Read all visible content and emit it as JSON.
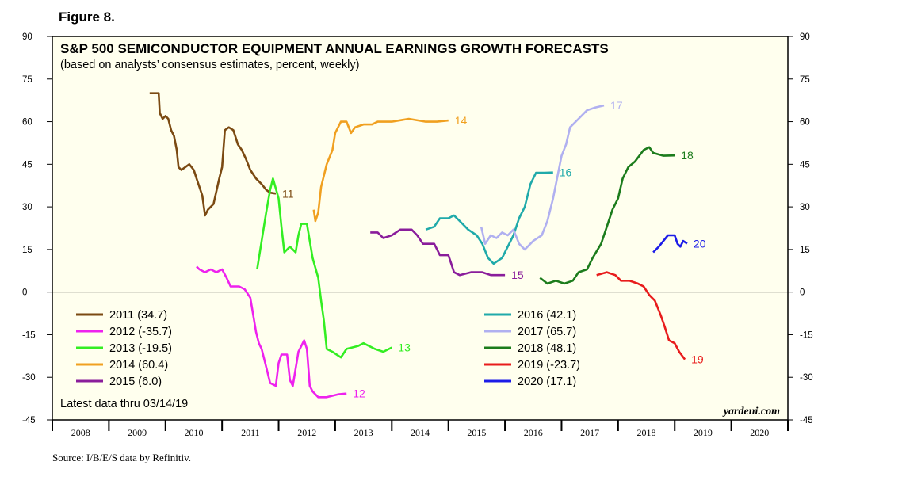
{
  "figure_label": "Figure 8.",
  "source": "Source: I/B/E/S data by Refinitiv.",
  "chart_data": {
    "type": "line",
    "title": "S&P 500 SEMICONDUCTOR EQUIPMENT ANNUAL EARNINGS GROWTH FORECASTS",
    "subtitle": "(based on analysts’ consensus estimates, percent, weekly)",
    "xlabel": "",
    "ylabel": "",
    "xlim": [
      2008,
      2021
    ],
    "ylim": [
      -45,
      90
    ],
    "yticks": [
      90,
      75,
      60,
      45,
      30,
      15,
      0,
      -15,
      -30,
      -45
    ],
    "ytick_labels": [
      "90",
      "75",
      "60",
      "45",
      "30",
      "15",
      "0",
      "-15",
      "-30",
      "-45"
    ],
    "x_categories": [
      "2008",
      "2009",
      "2010",
      "2011",
      "2012",
      "2013",
      "2014",
      "2015",
      "2016",
      "2017",
      "2018",
      "2019",
      "2020"
    ],
    "zero_line": true,
    "note": "Latest data thru 03/14/19",
    "brand": "yardeni.com",
    "legend_position": "lower-left and lower-center, two columns",
    "series": [
      {
        "name": "2011",
        "legend": "2011 (34.7)",
        "end_label": "11",
        "color": "#7b4a12",
        "points": [
          [
            2009.72,
            70
          ],
          [
            2009.88,
            70
          ],
          [
            2009.9,
            63
          ],
          [
            2009.95,
            61
          ],
          [
            2010.0,
            62
          ],
          [
            2010.05,
            61
          ],
          [
            2010.1,
            57
          ],
          [
            2010.15,
            55
          ],
          [
            2010.2,
            50
          ],
          [
            2010.23,
            44
          ],
          [
            2010.28,
            43
          ],
          [
            2010.35,
            44
          ],
          [
            2010.42,
            45
          ],
          [
            2010.5,
            43
          ],
          [
            2010.55,
            40
          ],
          [
            2010.6,
            37
          ],
          [
            2010.65,
            34
          ],
          [
            2010.7,
            27
          ],
          [
            2010.75,
            29
          ],
          [
            2010.85,
            31
          ],
          [
            2010.95,
            40
          ],
          [
            2011.0,
            44
          ],
          [
            2011.05,
            57
          ],
          [
            2011.12,
            58
          ],
          [
            2011.2,
            57
          ],
          [
            2011.28,
            52
          ],
          [
            2011.35,
            50
          ],
          [
            2011.42,
            47
          ],
          [
            2011.5,
            43
          ],
          [
            2011.6,
            40
          ],
          [
            2011.7,
            38
          ],
          [
            2011.78,
            36
          ],
          [
            2011.85,
            35
          ],
          [
            2011.95,
            34.7
          ]
        ]
      },
      {
        "name": "2012",
        "legend": "2012 (-35.7)",
        "end_label": "12",
        "color": "#ee22ee",
        "points": [
          [
            2010.55,
            9
          ],
          [
            2010.6,
            8
          ],
          [
            2010.7,
            7
          ],
          [
            2010.8,
            8
          ],
          [
            2010.9,
            7
          ],
          [
            2011.0,
            8
          ],
          [
            2011.08,
            5
          ],
          [
            2011.15,
            2
          ],
          [
            2011.3,
            2
          ],
          [
            2011.4,
            1
          ],
          [
            2011.5,
            -2
          ],
          [
            2011.55,
            -8
          ],
          [
            2011.6,
            -14
          ],
          [
            2011.65,
            -18
          ],
          [
            2011.7,
            -20
          ],
          [
            2011.75,
            -24
          ],
          [
            2011.8,
            -28
          ],
          [
            2011.85,
            -32
          ],
          [
            2011.95,
            -33
          ],
          [
            2012.0,
            -25
          ],
          [
            2012.05,
            -22
          ],
          [
            2012.15,
            -22
          ],
          [
            2012.2,
            -31
          ],
          [
            2012.25,
            -33
          ],
          [
            2012.35,
            -21
          ],
          [
            2012.45,
            -17
          ],
          [
            2012.5,
            -20
          ],
          [
            2012.55,
            -33
          ],
          [
            2012.6,
            -35
          ],
          [
            2012.7,
            -37
          ],
          [
            2012.85,
            -37
          ],
          [
            2013.05,
            -36
          ],
          [
            2013.2,
            -35.7
          ]
        ]
      },
      {
        "name": "2013",
        "legend": "2013 (-19.5)",
        "end_label": "13",
        "color": "#33ee22",
        "points": [
          [
            2011.62,
            8
          ],
          [
            2011.7,
            18
          ],
          [
            2011.78,
            28
          ],
          [
            2011.85,
            36
          ],
          [
            2011.9,
            40
          ],
          [
            2012.0,
            33
          ],
          [
            2012.05,
            23
          ],
          [
            2012.1,
            14
          ],
          [
            2012.2,
            16
          ],
          [
            2012.3,
            14
          ],
          [
            2012.35,
            20
          ],
          [
            2012.4,
            24
          ],
          [
            2012.5,
            24
          ],
          [
            2012.55,
            18
          ],
          [
            2012.6,
            12
          ],
          [
            2012.7,
            5
          ],
          [
            2012.75,
            -3
          ],
          [
            2012.8,
            -10
          ],
          [
            2012.85,
            -20
          ],
          [
            2012.95,
            -21
          ],
          [
            2013.1,
            -23
          ],
          [
            2013.2,
            -20
          ],
          [
            2013.4,
            -19
          ],
          [
            2013.5,
            -18
          ],
          [
            2013.7,
            -20
          ],
          [
            2013.85,
            -21
          ],
          [
            2014.0,
            -19.5
          ]
        ]
      },
      {
        "name": "2014",
        "legend": "2014 (60.4)",
        "end_label": "14",
        "color": "#f0a020",
        "points": [
          [
            2012.62,
            29
          ],
          [
            2012.65,
            25
          ],
          [
            2012.7,
            28
          ],
          [
            2012.75,
            37
          ],
          [
            2012.85,
            45
          ],
          [
            2012.95,
            50
          ],
          [
            2013.0,
            56
          ],
          [
            2013.1,
            60
          ],
          [
            2013.2,
            60
          ],
          [
            2013.28,
            56
          ],
          [
            2013.35,
            58
          ],
          [
            2013.5,
            59
          ],
          [
            2013.65,
            59
          ],
          [
            2013.75,
            60
          ],
          [
            2014.0,
            60
          ],
          [
            2014.3,
            61
          ],
          [
            2014.6,
            60
          ],
          [
            2014.8,
            60
          ],
          [
            2015.0,
            60.4
          ]
        ]
      },
      {
        "name": "2015",
        "legend": "2015 (6.0)",
        "end_label": "15",
        "color": "#8a1d9b",
        "points": [
          [
            2013.62,
            21
          ],
          [
            2013.75,
            21
          ],
          [
            2013.85,
            19
          ],
          [
            2014.0,
            20
          ],
          [
            2014.15,
            22
          ],
          [
            2014.35,
            22
          ],
          [
            2014.45,
            20
          ],
          [
            2014.55,
            17
          ],
          [
            2014.75,
            17
          ],
          [
            2014.85,
            13
          ],
          [
            2015.0,
            13
          ],
          [
            2015.05,
            10
          ],
          [
            2015.1,
            7
          ],
          [
            2015.2,
            6
          ],
          [
            2015.4,
            7
          ],
          [
            2015.6,
            7
          ],
          [
            2015.75,
            6
          ],
          [
            2015.9,
            6
          ],
          [
            2016.0,
            6.0
          ]
        ]
      },
      {
        "name": "2016",
        "legend": "2016 (42.1)",
        "end_label": "16",
        "color": "#20aaaa",
        "points": [
          [
            2014.6,
            22
          ],
          [
            2014.75,
            23
          ],
          [
            2014.85,
            26
          ],
          [
            2015.0,
            26
          ],
          [
            2015.1,
            27
          ],
          [
            2015.2,
            25
          ],
          [
            2015.35,
            22
          ],
          [
            2015.5,
            20
          ],
          [
            2015.6,
            17
          ],
          [
            2015.7,
            12
          ],
          [
            2015.8,
            10
          ],
          [
            2015.95,
            12
          ],
          [
            2016.05,
            16
          ],
          [
            2016.15,
            20
          ],
          [
            2016.25,
            26
          ],
          [
            2016.35,
            30
          ],
          [
            2016.45,
            38
          ],
          [
            2016.55,
            42
          ],
          [
            2016.7,
            42
          ],
          [
            2016.85,
            42.1
          ]
        ]
      },
      {
        "name": "2017",
        "legend": "2017 (65.7)",
        "end_label": "17",
        "color": "#b0b0f0",
        "points": [
          [
            2015.58,
            23
          ],
          [
            2015.65,
            17
          ],
          [
            2015.75,
            20
          ],
          [
            2015.85,
            19
          ],
          [
            2015.95,
            21
          ],
          [
            2016.05,
            20
          ],
          [
            2016.15,
            22
          ],
          [
            2016.25,
            17
          ],
          [
            2016.35,
            15
          ],
          [
            2016.5,
            18
          ],
          [
            2016.65,
            20
          ],
          [
            2016.75,
            25
          ],
          [
            2016.85,
            33
          ],
          [
            2016.92,
            40
          ],
          [
            2017.0,
            48
          ],
          [
            2017.08,
            52
          ],
          [
            2017.15,
            58
          ],
          [
            2017.3,
            61
          ],
          [
            2017.45,
            64
          ],
          [
            2017.6,
            65
          ],
          [
            2017.75,
            65.7
          ]
        ]
      },
      {
        "name": "2018",
        "legend": "2018 (48.1)",
        "end_label": "18",
        "color": "#1c7c1c",
        "points": [
          [
            2016.62,
            5
          ],
          [
            2016.75,
            3
          ],
          [
            2016.9,
            4
          ],
          [
            2017.05,
            3
          ],
          [
            2017.2,
            4
          ],
          [
            2017.3,
            7
          ],
          [
            2017.45,
            8
          ],
          [
            2017.55,
            12
          ],
          [
            2017.7,
            17
          ],
          [
            2017.8,
            23
          ],
          [
            2017.9,
            29
          ],
          [
            2018.0,
            33
          ],
          [
            2018.08,
            40
          ],
          [
            2018.18,
            44
          ],
          [
            2018.3,
            46
          ],
          [
            2018.45,
            50
          ],
          [
            2018.55,
            51
          ],
          [
            2018.62,
            49
          ],
          [
            2018.8,
            48
          ],
          [
            2019.0,
            48.1
          ]
        ]
      },
      {
        "name": "2019",
        "legend": "2019 (-23.7)",
        "end_label": "19",
        "color": "#e81c1c",
        "points": [
          [
            2017.62,
            6
          ],
          [
            2017.8,
            7
          ],
          [
            2017.95,
            6
          ],
          [
            2018.05,
            4
          ],
          [
            2018.2,
            4
          ],
          [
            2018.35,
            3
          ],
          [
            2018.45,
            2
          ],
          [
            2018.55,
            -1
          ],
          [
            2018.65,
            -3
          ],
          [
            2018.75,
            -8
          ],
          [
            2018.82,
            -12
          ],
          [
            2018.9,
            -17
          ],
          [
            2019.0,
            -18
          ],
          [
            2019.08,
            -21
          ],
          [
            2019.18,
            -23.7
          ]
        ]
      },
      {
        "name": "2020",
        "legend": "2020 (17.1)",
        "end_label": "20",
        "color": "#1c1ce8",
        "points": [
          [
            2018.62,
            14
          ],
          [
            2018.72,
            16
          ],
          [
            2018.8,
            18
          ],
          [
            2018.88,
            20
          ],
          [
            2019.0,
            20
          ],
          [
            2019.05,
            17
          ],
          [
            2019.1,
            16
          ],
          [
            2019.15,
            18
          ],
          [
            2019.22,
            17.1
          ]
        ]
      }
    ]
  }
}
